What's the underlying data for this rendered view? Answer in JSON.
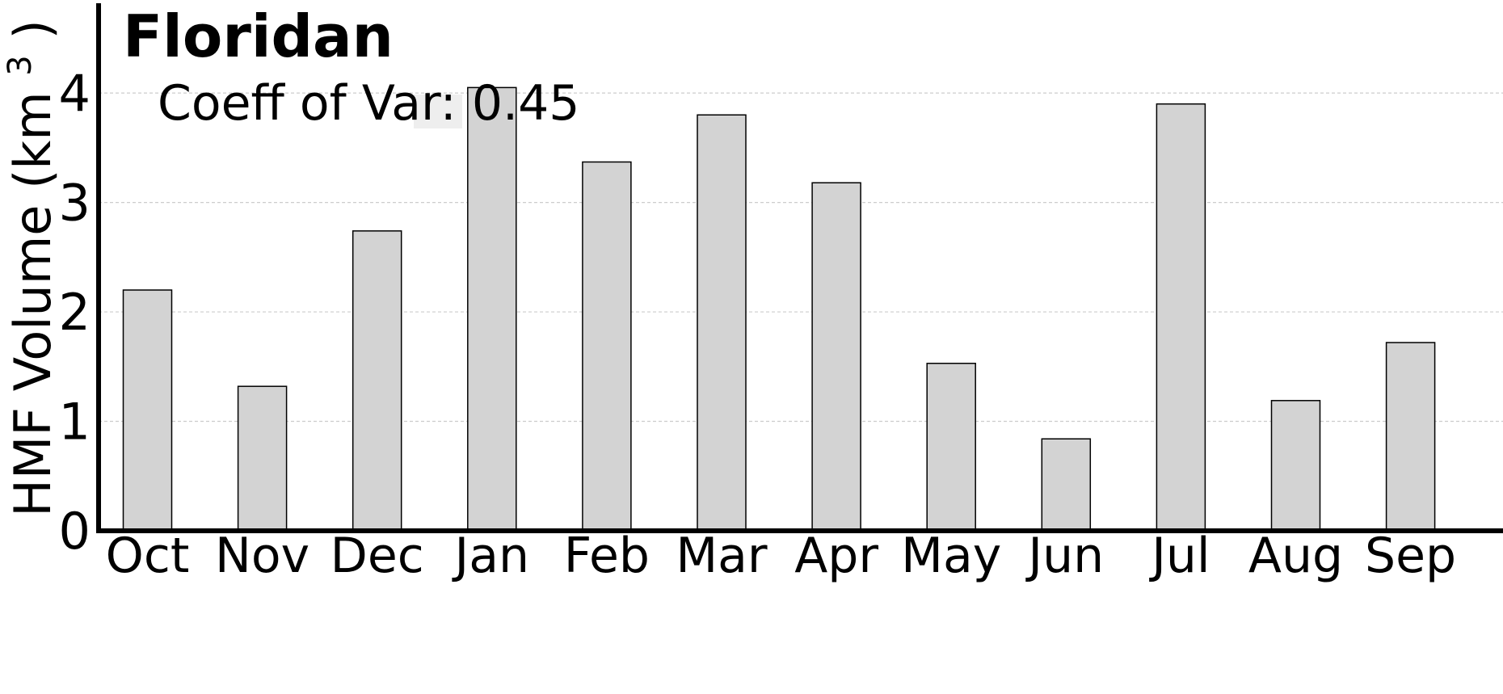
{
  "chart_data": {
    "type": "bar",
    "title": "Floridan",
    "ylabel_main": "HMF Volume (km",
    "ylabel_sup": "3",
    "ylabel_close": ")",
    "xlabel": "",
    "annotation": "Coeff of Var: 0.45",
    "categories": [
      "Oct",
      "Nov",
      "Dec",
      "Jan",
      "Feb",
      "Mar",
      "Apr",
      "May",
      "Jun",
      "Jul",
      "Aug",
      "Sep"
    ],
    "values": [
      2.2,
      1.32,
      2.74,
      4.05,
      3.37,
      3.8,
      3.18,
      1.53,
      0.84,
      3.9,
      1.19,
      1.72
    ],
    "ylim": [
      0,
      4.85
    ],
    "yticks": [
      0,
      1,
      2,
      3,
      4
    ],
    "grid": "horizontal dashed",
    "bar_color": "#d3d3d3",
    "bar_edge_color": "#000000",
    "grid_color": "#cccccc",
    "annotation_box_color": "#e8e8e8"
  }
}
